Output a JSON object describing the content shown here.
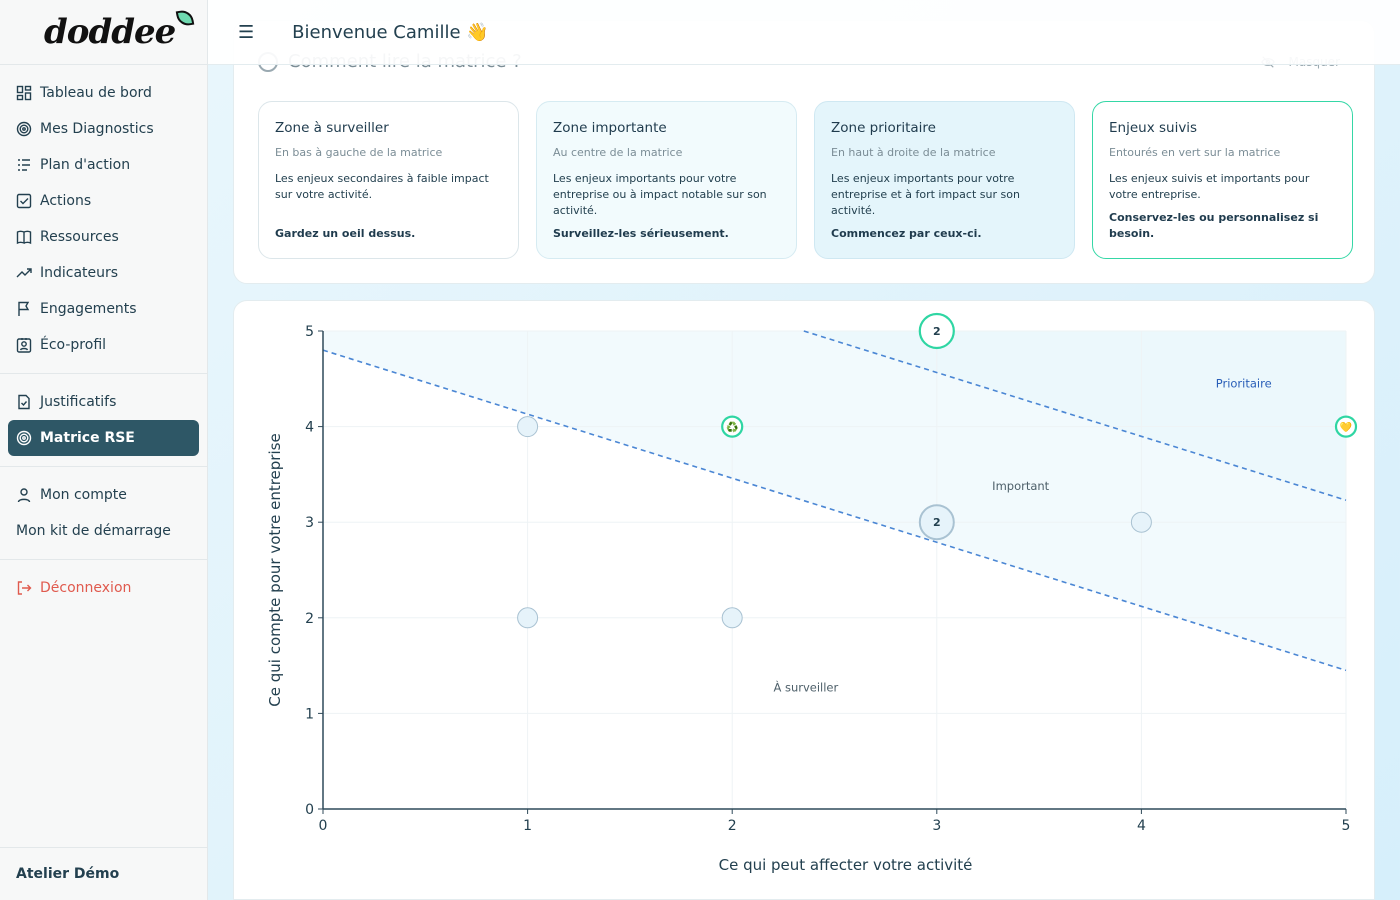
{
  "brand": {
    "logo_text": "doddee"
  },
  "sidebar": {
    "main_items": [
      {
        "label": "Tableau de bord",
        "icon": "dashboard-icon"
      },
      {
        "label": "Mes Diagnostics",
        "icon": "target-icon"
      },
      {
        "label": "Plan d'action",
        "icon": "list-icon"
      },
      {
        "label": "Actions",
        "icon": "checkbox-icon"
      },
      {
        "label": "Ressources",
        "icon": "book-icon"
      },
      {
        "label": "Indicateurs",
        "icon": "trend-icon"
      },
      {
        "label": "Engagements",
        "icon": "flag-icon"
      },
      {
        "label": "Éco-profil",
        "icon": "badge-icon"
      }
    ],
    "secondary_items": [
      {
        "label": "Justificatifs",
        "icon": "document-icon"
      },
      {
        "label": "Matrice RSE",
        "icon": "target-icon",
        "active": true
      }
    ],
    "account_items": [
      {
        "label": "Mon compte",
        "icon": "user-icon"
      },
      {
        "label": "Mon kit de démarrage"
      }
    ],
    "logout_label": "Déconnexion",
    "footer_label": "Atelier Démo"
  },
  "header": {
    "welcome": "Bienvenue Camille 👋"
  },
  "guide": {
    "title": "Comment lire la matrice ?",
    "hide_label": "Masquer",
    "zones": [
      {
        "title": "Zone à surveiller",
        "subtitle": "En bas à gauche de la matrice",
        "description": "Les enjeux secondaires à faible impact sur votre activité.",
        "cta": "Gardez un oeil dessus."
      },
      {
        "title": "Zone importante",
        "subtitle": "Au centre de la matrice",
        "description": "Les enjeux importants pour votre entreprise ou à impact notable sur son activité.",
        "cta": "Surveillez-les sérieusement."
      },
      {
        "title": "Zone prioritaire",
        "subtitle": "En haut à droite de la matrice",
        "description": "Les enjeux importants pour votre entreprise et à fort impact sur son activité.",
        "cta": "Commencez par ceux-ci."
      },
      {
        "title": "Enjeux suivis",
        "subtitle": "Entourés en vert sur la matrice",
        "description": "Les enjeux suivis et importants pour votre entreprise.",
        "cta": "Conservez-les ou personnalisez si besoin."
      }
    ]
  },
  "chart_data": {
    "type": "scatter",
    "xlabel": "Ce qui peut affecter votre activité",
    "ylabel": "Ce qui compte pour votre entreprise",
    "xlim": [
      0,
      5
    ],
    "ylim": [
      0,
      5
    ],
    "xticks": [
      "0",
      "1",
      "2",
      "3",
      "4",
      "5"
    ],
    "yticks": [
      "0",
      "1",
      "2",
      "3",
      "4",
      "5"
    ],
    "grid": true,
    "zone_labels": [
      {
        "text": "Prioritaire",
        "x": 4.5,
        "y": 4.45,
        "color": "#2a5fb8"
      },
      {
        "text": "Important",
        "x": 3.41,
        "y": 3.38,
        "color": "#4d5f69"
      },
      {
        "text": "À surveiller",
        "x": 2.36,
        "y": 1.27,
        "color": "#4d5f69"
      }
    ],
    "thresholds": [
      {
        "from": [
          0,
          4.8
        ],
        "to": [
          5,
          1.45
        ]
      },
      {
        "from": [
          2.35,
          5
        ],
        "to": [
          5,
          3.23
        ]
      }
    ],
    "points": [
      {
        "x": 1,
        "y": 4,
        "count": 1,
        "tracked": false
      },
      {
        "x": 2,
        "y": 4,
        "count": 1,
        "tracked": true,
        "emoji": "♻️"
      },
      {
        "x": 3,
        "y": 5,
        "count": 2,
        "tracked": true
      },
      {
        "x": 5,
        "y": 4,
        "count": 1,
        "tracked": true,
        "emoji": "💛"
      },
      {
        "x": 3,
        "y": 3,
        "count": 2,
        "tracked": false
      },
      {
        "x": 4,
        "y": 3,
        "count": 1,
        "tracked": false
      },
      {
        "x": 1,
        "y": 2,
        "count": 1,
        "tracked": false
      },
      {
        "x": 2,
        "y": 2,
        "count": 1,
        "tracked": false
      }
    ],
    "colors": {
      "tracked_ring": "#2fd6a3",
      "bubble_fill": "#e6f3fa",
      "bubble_stroke": "#a9c2d2",
      "threshold": "#4a86d4",
      "zone_fill": "#e8f6fc"
    }
  }
}
